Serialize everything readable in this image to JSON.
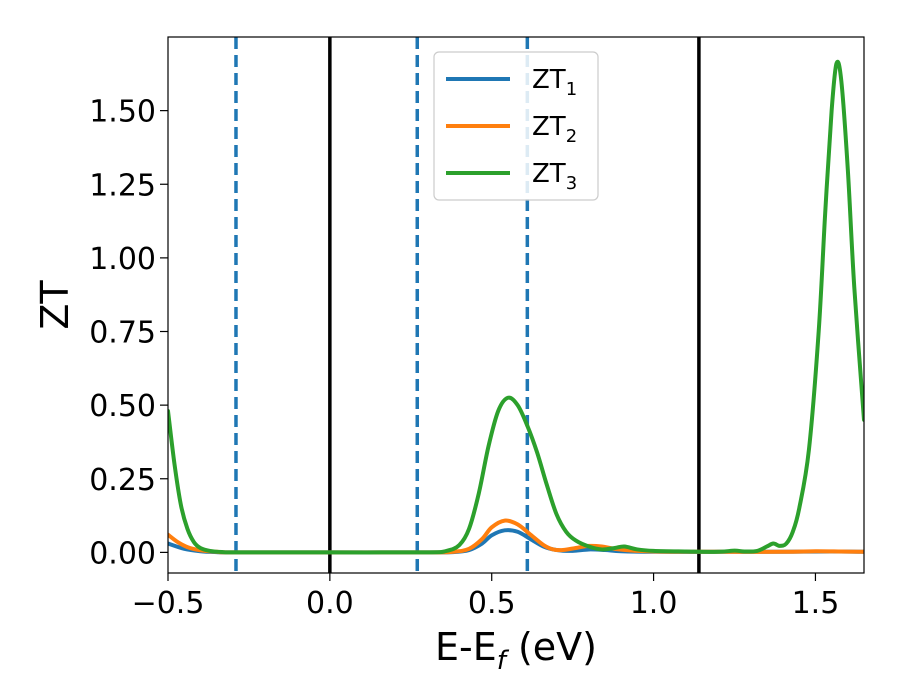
{
  "chart_data": {
    "type": "line",
    "xlabel_main": "E-E",
    "xlabel_sub": "f",
    "xlabel_unit": " (eV)",
    "ylabel": "ZT",
    "xlim": [
      -0.5,
      1.65
    ],
    "ylim": [
      -0.07,
      1.75
    ],
    "x_ticks": [
      -0.5,
      0.0,
      0.5,
      1.0,
      1.5
    ],
    "x_tick_labels": [
      "−0.5",
      "0.0",
      "0.5",
      "1.0",
      "1.5"
    ],
    "y_ticks": [
      0.0,
      0.25,
      0.5,
      0.75,
      1.0,
      1.25,
      1.5
    ],
    "y_tick_labels": [
      "0.00",
      "0.25",
      "0.50",
      "0.75",
      "1.00",
      "1.25",
      "1.50"
    ],
    "grid": false,
    "legend_position": "top-center",
    "vlines": [
      {
        "x": -0.29,
        "style": "dashed",
        "color": "#1f77b4"
      },
      {
        "x": 0.0,
        "style": "solid",
        "color": "#000000"
      },
      {
        "x": 0.27,
        "style": "dashed",
        "color": "#1f77b4"
      },
      {
        "x": 0.61,
        "style": "dashed",
        "color": "#1f77b4"
      },
      {
        "x": 1.14,
        "style": "solid",
        "color": "#000000"
      }
    ],
    "series": [
      {
        "name": "ZT",
        "name_sub": "1",
        "color": "#1f77b4",
        "points": [
          [
            -0.5,
            0.03
          ],
          [
            -0.45,
            0.012
          ],
          [
            -0.4,
            0.004
          ],
          [
            -0.35,
            0.001
          ],
          [
            -0.3,
            0.0
          ],
          [
            0.0,
            0.0
          ],
          [
            0.3,
            0.0
          ],
          [
            0.38,
            0.001
          ],
          [
            0.43,
            0.008
          ],
          [
            0.47,
            0.03
          ],
          [
            0.5,
            0.058
          ],
          [
            0.54,
            0.075
          ],
          [
            0.58,
            0.07
          ],
          [
            0.62,
            0.045
          ],
          [
            0.66,
            0.02
          ],
          [
            0.7,
            0.008
          ],
          [
            0.75,
            0.005
          ],
          [
            0.8,
            0.01
          ],
          [
            0.85,
            0.008
          ],
          [
            0.9,
            0.004
          ],
          [
            1.0,
            0.002
          ],
          [
            1.2,
            0.002
          ],
          [
            1.4,
            0.002
          ],
          [
            1.55,
            0.003
          ],
          [
            1.65,
            0.002
          ]
        ]
      },
      {
        "name": "ZT",
        "name_sub": "2",
        "color": "#ff7f0e",
        "points": [
          [
            -0.5,
            0.06
          ],
          [
            -0.47,
            0.035
          ],
          [
            -0.44,
            0.018
          ],
          [
            -0.4,
            0.007
          ],
          [
            -0.35,
            0.002
          ],
          [
            -0.3,
            0.0
          ],
          [
            0.0,
            0.0
          ],
          [
            0.3,
            0.0
          ],
          [
            0.38,
            0.002
          ],
          [
            0.43,
            0.012
          ],
          [
            0.47,
            0.045
          ],
          [
            0.5,
            0.085
          ],
          [
            0.54,
            0.108
          ],
          [
            0.58,
            0.095
          ],
          [
            0.62,
            0.06
          ],
          [
            0.66,
            0.025
          ],
          [
            0.69,
            0.01
          ],
          [
            0.72,
            0.008
          ],
          [
            0.76,
            0.015
          ],
          [
            0.8,
            0.022
          ],
          [
            0.84,
            0.02
          ],
          [
            0.88,
            0.012
          ],
          [
            0.95,
            0.005
          ],
          [
            1.05,
            0.002
          ],
          [
            1.2,
            0.002
          ],
          [
            1.4,
            0.002
          ],
          [
            1.5,
            0.004
          ],
          [
            1.58,
            0.003
          ],
          [
            1.65,
            0.002
          ]
        ]
      },
      {
        "name": "ZT",
        "name_sub": "3",
        "color": "#2ca02c",
        "points": [
          [
            -0.5,
            0.48
          ],
          [
            -0.48,
            0.3
          ],
          [
            -0.46,
            0.16
          ],
          [
            -0.44,
            0.08
          ],
          [
            -0.42,
            0.035
          ],
          [
            -0.4,
            0.015
          ],
          [
            -0.37,
            0.005
          ],
          [
            -0.33,
            0.001
          ],
          [
            -0.29,
            0.0
          ],
          [
            0.0,
            0.0
          ],
          [
            0.3,
            0.0
          ],
          [
            0.36,
            0.005
          ],
          [
            0.4,
            0.025
          ],
          [
            0.43,
            0.08
          ],
          [
            0.46,
            0.2
          ],
          [
            0.49,
            0.36
          ],
          [
            0.52,
            0.48
          ],
          [
            0.55,
            0.525
          ],
          [
            0.58,
            0.5
          ],
          [
            0.61,
            0.43
          ],
          [
            0.64,
            0.34
          ],
          [
            0.67,
            0.23
          ],
          [
            0.7,
            0.13
          ],
          [
            0.73,
            0.07
          ],
          [
            0.76,
            0.04
          ],
          [
            0.8,
            0.02
          ],
          [
            0.84,
            0.01
          ],
          [
            0.88,
            0.015
          ],
          [
            0.91,
            0.02
          ],
          [
            0.95,
            0.01
          ],
          [
            1.0,
            0.005
          ],
          [
            1.1,
            0.003
          ],
          [
            1.2,
            0.002
          ],
          [
            1.25,
            0.006
          ],
          [
            1.28,
            0.003
          ],
          [
            1.32,
            0.005
          ],
          [
            1.35,
            0.02
          ],
          [
            1.37,
            0.03
          ],
          [
            1.39,
            0.022
          ],
          [
            1.41,
            0.03
          ],
          [
            1.43,
            0.07
          ],
          [
            1.45,
            0.15
          ],
          [
            1.48,
            0.35
          ],
          [
            1.51,
            0.75
          ],
          [
            1.53,
            1.15
          ],
          [
            1.55,
            1.5
          ],
          [
            1.565,
            1.66
          ],
          [
            1.58,
            1.6
          ],
          [
            1.6,
            1.3
          ],
          [
            1.62,
            0.9
          ],
          [
            1.65,
            0.45
          ]
        ]
      }
    ]
  }
}
